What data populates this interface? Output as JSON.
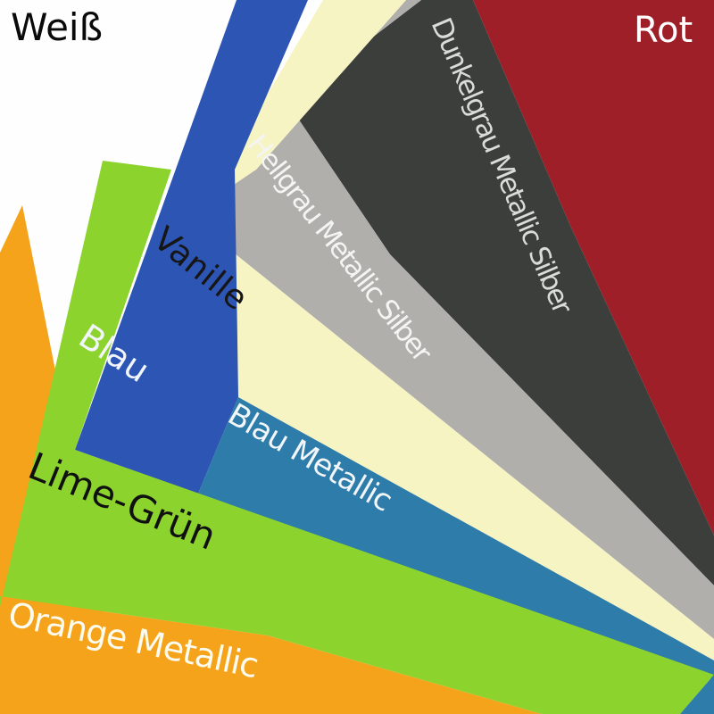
{
  "product": {
    "description": "Fan of colored sample sheets with German color names"
  },
  "sheets": [
    {
      "id": "weiss",
      "label": "Weiß",
      "color": "#FEFEFE",
      "label_color": "#0A0A0A"
    },
    {
      "id": "rot",
      "label": "Rot",
      "color": "#9E1F27",
      "label_color": "#FFFFFF"
    },
    {
      "id": "dunkelgrau",
      "label": "Dunkelgrau Metallic Silber",
      "color": "#3C3E3C",
      "label_color": "#D8DCDA"
    },
    {
      "id": "hellgrau",
      "label": "Hellgrau Metallic Silber",
      "color": "#B0AFAB",
      "label_color": "#F4F5F2"
    },
    {
      "id": "vanille",
      "label": "Vanille",
      "color": "#F7F4C3",
      "label_color": "#161616"
    },
    {
      "id": "blau",
      "label": "Blau",
      "color": "#2C55B4",
      "label_color": "#F2F5FA"
    },
    {
      "id": "blau_metallic",
      "label": "Blau Metallic",
      "color": "#2E7CA9",
      "label_color": "#F2F6F8"
    },
    {
      "id": "orange_metallic",
      "label": "Orange Metallic",
      "color": "#F5A31B",
      "label_color": "#FCFBEF"
    },
    {
      "id": "lime_gruen",
      "label": "Lime-Grün",
      "color": "#8CD32E",
      "label_color": "#101010"
    }
  ]
}
